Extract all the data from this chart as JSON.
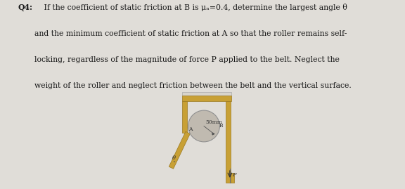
{
  "background_color": "#e0ddd8",
  "text_color": "#1a1a1a",
  "line1_bold": "Q4:",
  "line1_rest": " If the coefficient of static friction at B is μₙ=0.4, determine the largest angle θ",
  "line2": "and the minimum coefficient of static friction at A so that the roller remains self-",
  "line3": "locking, regardless of the magnitude of force P applied to the belt. Neglect the",
  "line4": "weight of the roller and neglect friction between the belt and the vertical surface.",
  "gold_color": "#c8a035",
  "gold_dark": "#9a7820",
  "gold_light": "#d4ae55",
  "roller_color": "#c0bab0",
  "roller_edge": "#909090",
  "label_50mm": "50mm",
  "label_A": "A",
  "label_B": "B",
  "label_P": "P",
  "label_theta": "θ",
  "text_fontsize": 7.8,
  "diagram_label_fontsize": 5.5
}
